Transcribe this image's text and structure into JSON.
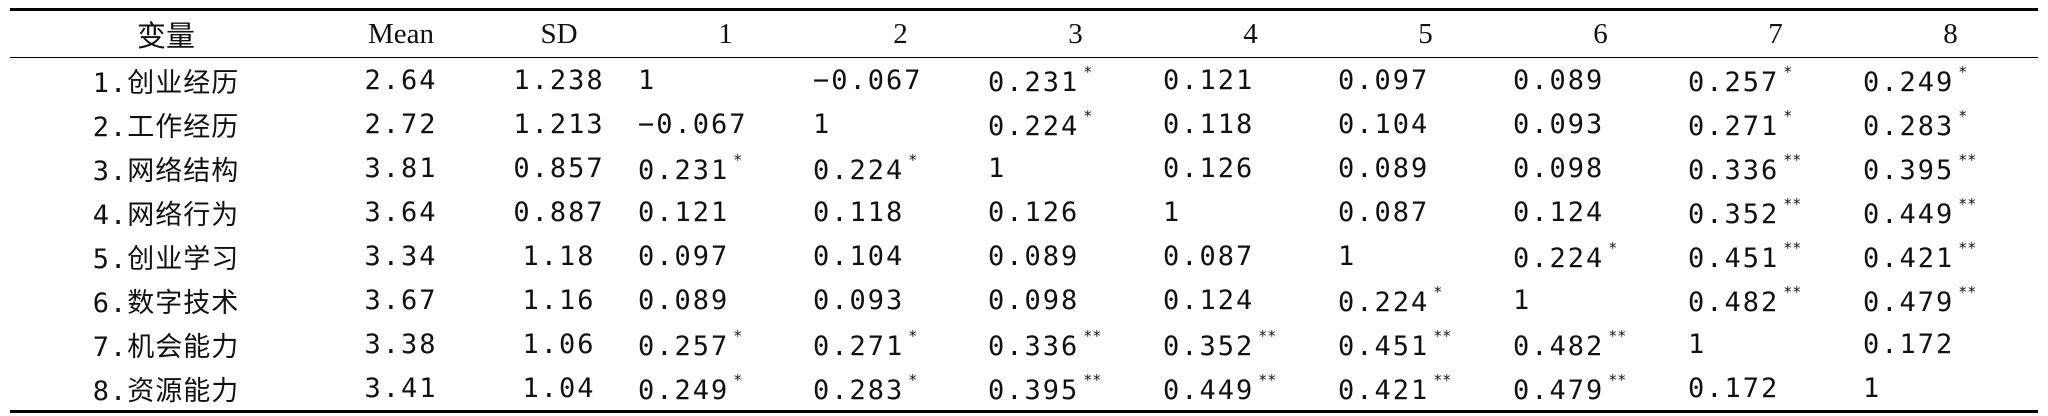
{
  "table": {
    "headers": [
      "变量",
      "Mean",
      "SD",
      "1",
      "2",
      "3",
      "4",
      "5",
      "6",
      "7",
      "8"
    ],
    "rows": [
      {
        "label": "1.创业经历",
        "mean": "2.64",
        "sd": "1.238",
        "cells": [
          {
            "value": "1",
            "sig": ""
          },
          {
            "value": "−0.067",
            "sig": ""
          },
          {
            "value": "0.231",
            "sig": "*"
          },
          {
            "value": "0.121",
            "sig": ""
          },
          {
            "value": "0.097",
            "sig": ""
          },
          {
            "value": "0.089",
            "sig": ""
          },
          {
            "value": "0.257",
            "sig": "*"
          },
          {
            "value": "0.249",
            "sig": "*"
          }
        ]
      },
      {
        "label": "2.工作经历",
        "mean": "2.72",
        "sd": "1.213",
        "cells": [
          {
            "value": "−0.067",
            "sig": ""
          },
          {
            "value": "1",
            "sig": ""
          },
          {
            "value": "0.224",
            "sig": "*"
          },
          {
            "value": "0.118",
            "sig": ""
          },
          {
            "value": "0.104",
            "sig": ""
          },
          {
            "value": "0.093",
            "sig": ""
          },
          {
            "value": "0.271",
            "sig": "*"
          },
          {
            "value": "0.283",
            "sig": "*"
          }
        ]
      },
      {
        "label": "3.网络结构",
        "mean": "3.81",
        "sd": "0.857",
        "cells": [
          {
            "value": "0.231",
            "sig": "*"
          },
          {
            "value": "0.224",
            "sig": "*"
          },
          {
            "value": "1",
            "sig": ""
          },
          {
            "value": "0.126",
            "sig": ""
          },
          {
            "value": "0.089",
            "sig": ""
          },
          {
            "value": "0.098",
            "sig": ""
          },
          {
            "value": "0.336",
            "sig": "**"
          },
          {
            "value": "0.395",
            "sig": "**"
          }
        ]
      },
      {
        "label": "4.网络行为",
        "mean": "3.64",
        "sd": "0.887",
        "cells": [
          {
            "value": "0.121",
            "sig": ""
          },
          {
            "value": "0.118",
            "sig": ""
          },
          {
            "value": "0.126",
            "sig": ""
          },
          {
            "value": "1",
            "sig": ""
          },
          {
            "value": "0.087",
            "sig": ""
          },
          {
            "value": "0.124",
            "sig": ""
          },
          {
            "value": "0.352",
            "sig": "**"
          },
          {
            "value": "0.449",
            "sig": "**"
          }
        ]
      },
      {
        "label": "5.创业学习",
        "mean": "3.34",
        "sd": "1.18",
        "cells": [
          {
            "value": "0.097",
            "sig": ""
          },
          {
            "value": "0.104",
            "sig": ""
          },
          {
            "value": "0.089",
            "sig": ""
          },
          {
            "value": "0.087",
            "sig": ""
          },
          {
            "value": "1",
            "sig": ""
          },
          {
            "value": "0.224",
            "sig": "*"
          },
          {
            "value": "0.451",
            "sig": "**"
          },
          {
            "value": "0.421",
            "sig": "**"
          }
        ]
      },
      {
        "label": "6.数字技术",
        "mean": "3.67",
        "sd": "1.16",
        "cells": [
          {
            "value": "0.089",
            "sig": ""
          },
          {
            "value": "0.093",
            "sig": ""
          },
          {
            "value": "0.098",
            "sig": ""
          },
          {
            "value": "0.124",
            "sig": ""
          },
          {
            "value": "0.224",
            "sig": "*"
          },
          {
            "value": "1",
            "sig": ""
          },
          {
            "value": "0.482",
            "sig": "**"
          },
          {
            "value": "0.479",
            "sig": "**"
          }
        ]
      },
      {
        "label": "7.机会能力",
        "mean": "3.38",
        "sd": "1.06",
        "cells": [
          {
            "value": "0.257",
            "sig": "*"
          },
          {
            "value": "0.271",
            "sig": "*"
          },
          {
            "value": "0.336",
            "sig": "**"
          },
          {
            "value": "0.352",
            "sig": "**"
          },
          {
            "value": "0.451",
            "sig": "**"
          },
          {
            "value": "0.482",
            "sig": "**"
          },
          {
            "value": "1",
            "sig": ""
          },
          {
            "value": "0.172",
            "sig": ""
          }
        ]
      },
      {
        "label": "8.资源能力",
        "mean": "3.41",
        "sd": "1.04",
        "cells": [
          {
            "value": "0.249",
            "sig": "*"
          },
          {
            "value": "0.283",
            "sig": "*"
          },
          {
            "value": "0.395",
            "sig": "**"
          },
          {
            "value": "0.449",
            "sig": "**"
          },
          {
            "value": "0.421",
            "sig": "**"
          },
          {
            "value": "0.479",
            "sig": "**"
          },
          {
            "value": "0.172",
            "sig": ""
          },
          {
            "value": "1",
            "sig": ""
          }
        ]
      }
    ]
  }
}
